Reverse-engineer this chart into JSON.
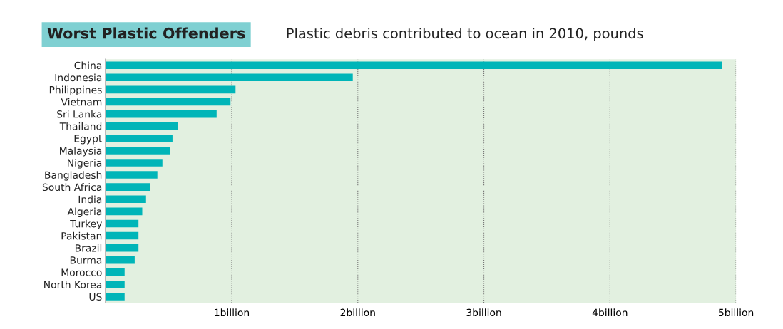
{
  "chart_data": {
    "type": "bar",
    "orientation": "horizontal",
    "title": "Worst Plastic Offenders",
    "subtitle": "Plastic debris contributed to ocean in 2010, pounds",
    "categories": [
      "China",
      "Indonesia",
      "Philippines",
      "Vietnam",
      "Sri Lanka",
      "Thailand",
      "Egypt",
      "Malaysia",
      "Nigeria",
      "Bangladesh",
      "South Africa",
      "India",
      "Algeria",
      "Turkey",
      "Pakistan",
      "Brazil",
      "Burma",
      "Morocco",
      "North Korea",
      "US"
    ],
    "values": [
      4.89,
      1.96,
      1.03,
      0.99,
      0.88,
      0.57,
      0.53,
      0.51,
      0.45,
      0.41,
      0.35,
      0.32,
      0.29,
      0.26,
      0.26,
      0.26,
      0.23,
      0.15,
      0.15,
      0.15
    ],
    "color": "#00b5b8",
    "xlim": [
      0,
      5
    ],
    "xticks": [
      {
        "value": 1,
        "label": "1billion"
      },
      {
        "value": 2,
        "label": "2billion"
      },
      {
        "value": 3,
        "label": "3billion"
      },
      {
        "value": 4,
        "label": "4billion"
      },
      {
        "value": 5,
        "label": "5billion"
      }
    ],
    "grid": "x"
  }
}
